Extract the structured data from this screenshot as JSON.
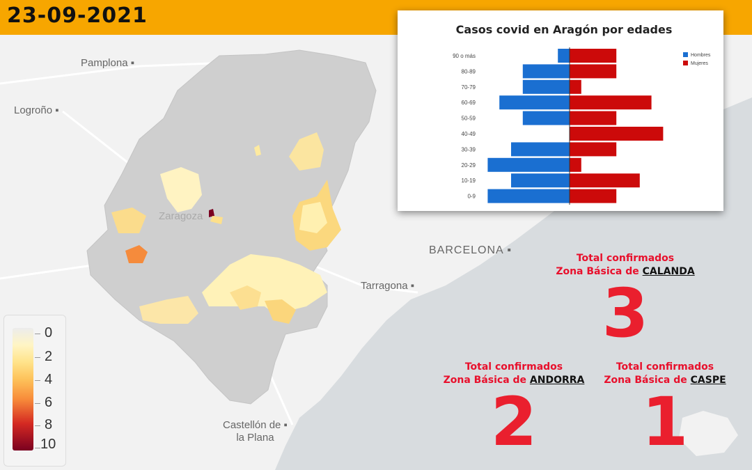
{
  "date": "23-09-2021",
  "cities": {
    "pamplona": "Pamplona",
    "logrono": "Logroño",
    "zaragoza": "Zaragoza",
    "barcelona": "BARCELONA",
    "tarragona": "Tarragona",
    "castellon_1": "Castellón de",
    "castellon_2": "la Plana"
  },
  "legend": {
    "ticks": [
      "0",
      "2",
      "4",
      "6",
      "8",
      "10"
    ],
    "colors": [
      "#ececec",
      "#fff5c4",
      "#ffe38a",
      "#fdc25a",
      "#f88c3a",
      "#d42922",
      "#7a0020"
    ]
  },
  "chart_data": {
    "type": "bar",
    "orientation": "horizontal-pyramid",
    "title": "Casos covid en Aragón por edades",
    "categories": [
      "90 o más",
      "80-89",
      "70-79",
      "60-69",
      "50-59",
      "40-49",
      "30-39",
      "20-29",
      "10-19",
      "0-9"
    ],
    "series": [
      {
        "name": "Hombres",
        "color": "#1a6fd1",
        "values": [
          1,
          4,
          4,
          6,
          4,
          0,
          5,
          7,
          5,
          7
        ]
      },
      {
        "name": "Mujeres",
        "color": "#cc0a0a",
        "values": [
          4,
          4,
          1,
          7,
          4,
          8,
          4,
          1,
          6,
          4
        ]
      }
    ],
    "xlim": [
      -7,
      8
    ],
    "legend_position": "right",
    "grid": false
  },
  "zones": [
    {
      "line1": "Total confirmados",
      "prefix": "Zona Básica de ",
      "name": "CALANDA",
      "count": "3"
    },
    {
      "line1": "Total confirmados",
      "prefix": "Zona Básica de ",
      "name": "ANDORRA",
      "count": "2"
    },
    {
      "line1": "Total confirmados",
      "prefix": "Zona Básica de ",
      "name": "CASPE",
      "count": "1"
    }
  ]
}
